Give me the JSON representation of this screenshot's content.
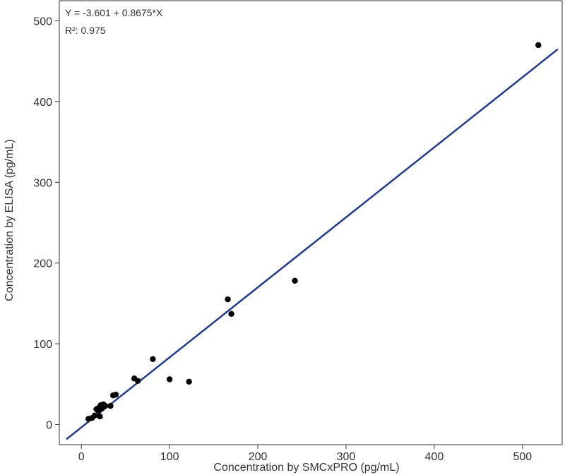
{
  "chart_data": {
    "type": "scatter",
    "title": "",
    "xlabel": "Concentration by SMCxPRO (pg/mL)",
    "ylabel": "Concentration by ELISA (pg/mL)",
    "xlim": [
      -25,
      545
    ],
    "ylim": [
      -25,
      525
    ],
    "xticks": [
      0,
      100,
      200,
      300,
      400,
      500
    ],
    "yticks": [
      0,
      100,
      200,
      300,
      400,
      500
    ],
    "grid": false,
    "annotations": {
      "equation": "Y = -3.601 + 0.8675*X",
      "r_squared": "R²: 0.975"
    },
    "regression": {
      "intercept": -3.601,
      "slope": 0.8675,
      "x_range": [
        -17,
        540
      ],
      "color": "#1f3a93"
    },
    "points": [
      {
        "x": 8,
        "y": 7
      },
      {
        "x": 12,
        "y": 8
      },
      {
        "x": 15,
        "y": 11
      },
      {
        "x": 17,
        "y": 19
      },
      {
        "x": 19,
        "y": 17
      },
      {
        "x": 20,
        "y": 21
      },
      {
        "x": 21,
        "y": 10
      },
      {
        "x": 22,
        "y": 24
      },
      {
        "x": 23,
        "y": 20
      },
      {
        "x": 25,
        "y": 25
      },
      {
        "x": 27,
        "y": 23
      },
      {
        "x": 33,
        "y": 23
      },
      {
        "x": 36,
        "y": 36
      },
      {
        "x": 39,
        "y": 37
      },
      {
        "x": 60,
        "y": 57
      },
      {
        "x": 64,
        "y": 54
      },
      {
        "x": 81,
        "y": 81
      },
      {
        "x": 100,
        "y": 56
      },
      {
        "x": 122,
        "y": 53
      },
      {
        "x": 166,
        "y": 155
      },
      {
        "x": 170,
        "y": 137
      },
      {
        "x": 242,
        "y": 178
      },
      {
        "x": 518,
        "y": 470
      }
    ],
    "point_color": "#000000"
  }
}
